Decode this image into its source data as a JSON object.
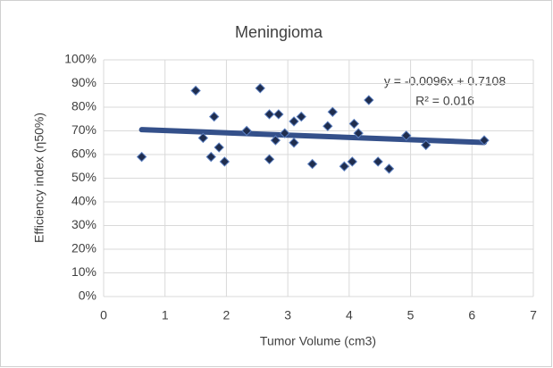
{
  "chart_data": {
    "type": "scatter",
    "title": "Meningioma",
    "x_label": "Tumor Volume (cm3)",
    "y_label": "Efficiency index (η50%)",
    "annotations": [
      "y = -0.0096x + 0.7108",
      "R² = 0.016"
    ],
    "series": [
      {
        "color": "#1f2d4e",
        "x": [
          0.62,
          1.5,
          1.62,
          1.8,
          1.75,
          1.88,
          1.97,
          2.33,
          2.55,
          2.7,
          2.7,
          2.8,
          2.85,
          2.95,
          3.1,
          3.1,
          3.22,
          3.4,
          3.65,
          3.73,
          3.92,
          4.05,
          4.08,
          4.15,
          4.32,
          4.47,
          4.65,
          4.93,
          5.25,
          6.2
        ],
        "values": [
          59,
          87,
          67,
          76,
          59,
          63,
          57,
          70,
          88,
          77,
          58,
          66,
          77,
          69,
          74,
          65,
          76,
          56,
          72,
          78,
          55,
          57,
          73,
          69,
          83,
          57,
          54,
          68,
          64,
          66
        ]
      }
    ],
    "trendline": {
      "color": "#34508a",
      "x": [
        0.62,
        6.2
      ],
      "values": [
        70.5,
        65.1
      ]
    },
    "xlim": [
      0,
      7
    ],
    "xticks": [
      0,
      1,
      2,
      3,
      4,
      5,
      6,
      7
    ],
    "ylim": [
      0,
      100
    ],
    "yticks": [
      {
        "value": 0,
        "label": "0%"
      },
      {
        "value": 10,
        "label": "10%"
      },
      {
        "value": 20,
        "label": "20%"
      },
      {
        "value": 30,
        "label": "30%"
      },
      {
        "value": 40,
        "label": "40%"
      },
      {
        "value": 50,
        "label": "50%"
      },
      {
        "value": 60,
        "label": "60%"
      },
      {
        "value": 70,
        "label": "70%"
      },
      {
        "value": 80,
        "label": "80%"
      },
      {
        "value": 90,
        "label": "90%"
      },
      {
        "value": 100,
        "label": "100%"
      }
    ],
    "grid": true
  }
}
